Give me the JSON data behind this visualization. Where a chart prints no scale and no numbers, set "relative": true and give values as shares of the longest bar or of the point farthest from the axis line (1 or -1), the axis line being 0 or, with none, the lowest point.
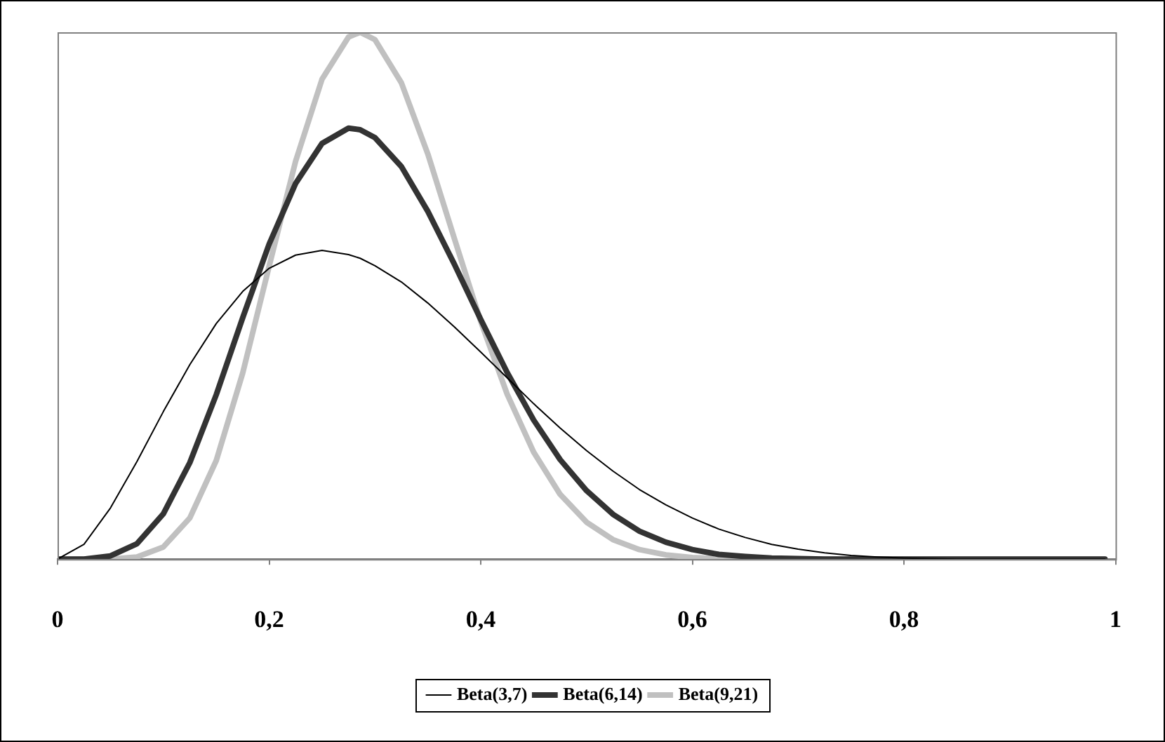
{
  "chart_data": {
    "type": "line",
    "relative": true,
    "marker": "none",
    "legend": "bottom",
    "x": [
      0,
      0.025,
      0.05,
      0.075,
      0.1,
      0.125,
      0.15,
      0.175,
      0.2,
      0.225,
      0.25,
      0.275,
      0.286,
      0.3,
      0.325,
      0.35,
      0.375,
      0.4,
      0.425,
      0.45,
      0.475,
      0.5,
      0.525,
      0.55,
      0.575,
      0.6,
      0.625,
      0.65,
      0.675,
      0.7,
      0.725,
      0.75,
      0.775,
      0.8,
      0.85,
      0.9,
      0.95,
      0.99
    ],
    "xlim": [
      0,
      1
    ],
    "xticks": [
      0,
      {
        "value": 0.2,
        "label": "0,2"
      },
      {
        "value": 0.4,
        "label": "0,4"
      },
      {
        "value": 0.6,
        "label": "0,6"
      },
      {
        "value": 0.8,
        "label": "0,8"
      },
      1
    ],
    "series": [
      {
        "name": "Beta(3,7)",
        "color": "#000000",
        "values": [
          0,
          0.028,
          0.097,
          0.185,
          0.28,
          0.369,
          0.447,
          0.508,
          0.552,
          0.577,
          0.586,
          0.578,
          0.571,
          0.557,
          0.526,
          0.486,
          0.441,
          0.393,
          0.344,
          0.295,
          0.249,
          0.206,
          0.167,
          0.132,
          0.103,
          0.078,
          0.057,
          0.041,
          0.028,
          0.019,
          0.012,
          0.007,
          0.004,
          0.002,
          0,
          0,
          0,
          0
        ]
      },
      {
        "name": "Beta(6,14)",
        "color": "#333333",
        "values": [
          0,
          0,
          0.006,
          0.029,
          0.086,
          0.183,
          0.312,
          0.458,
          0.598,
          0.713,
          0.789,
          0.818,
          0.815,
          0.8,
          0.745,
          0.66,
          0.56,
          0.455,
          0.354,
          0.264,
          0.189,
          0.13,
          0.085,
          0.053,
          0.032,
          0.018,
          0.009,
          0.005,
          0.002,
          0.001,
          0,
          0,
          0,
          0,
          0,
          0,
          0,
          0
        ]
      },
      {
        "name": "Beta(9,21)",
        "color": "#c0c0c0",
        "values": [
          0,
          0,
          0,
          0.004,
          0.023,
          0.078,
          0.187,
          0.353,
          0.556,
          0.755,
          0.911,
          0.991,
          1,
          0.986,
          0.904,
          0.769,
          0.609,
          0.451,
          0.313,
          0.203,
          0.123,
          0.07,
          0.037,
          0.018,
          0.008,
          0.003,
          0.001,
          0,
          0,
          0,
          0,
          0,
          0,
          0,
          0,
          0,
          0,
          0
        ]
      }
    ]
  }
}
